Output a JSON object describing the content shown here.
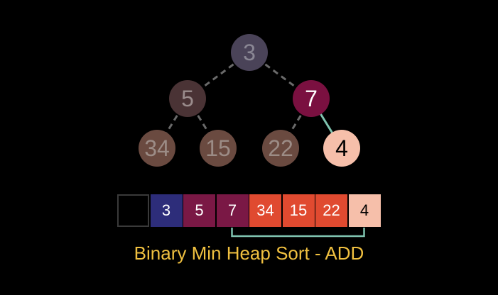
{
  "caption": "Binary Min Heap Sort - ADD",
  "tree": {
    "nodes": [
      {
        "id": "n1",
        "label": "3",
        "fill": "#4a4358",
        "text": "#8a8794"
      },
      {
        "id": "n2",
        "label": "5",
        "fill": "#4a3335",
        "text": "#9a8c8c"
      },
      {
        "id": "n3",
        "label": "7",
        "fill": "#7a1040",
        "text": "#ffffff"
      },
      {
        "id": "n4",
        "label": "34",
        "fill": "#6a4a40",
        "text": "#9c8c86"
      },
      {
        "id": "n5",
        "label": "15",
        "fill": "#6a4a40",
        "text": "#9c8c86"
      },
      {
        "id": "n6",
        "label": "22",
        "fill": "#6a4a40",
        "text": "#9c8c86"
      },
      {
        "id": "n7",
        "label": "4",
        "fill": "#f6bfaa",
        "text": "#000000"
      }
    ],
    "edges": [
      {
        "from": "n1",
        "to": "n2",
        "style": "dashed"
      },
      {
        "from": "n1",
        "to": "n3",
        "style": "dashed"
      },
      {
        "from": "n2",
        "to": "n4",
        "style": "dashed"
      },
      {
        "from": "n2",
        "to": "n5",
        "style": "dashed"
      },
      {
        "from": "n3",
        "to": "n6",
        "style": "dashed"
      },
      {
        "from": "n3",
        "to": "n7",
        "style": "solid"
      }
    ],
    "dashed_edge_color": "#6a6a6a",
    "highlight_edge_color": "#7fc4b0"
  },
  "array": {
    "cells": [
      {
        "label": "",
        "fill": "#000000",
        "text": "#ffffff"
      },
      {
        "label": "3",
        "fill": "#2d2d7a",
        "text": "#ffffff"
      },
      {
        "label": "5",
        "fill": "#7a1845",
        "text": "#ffffff"
      },
      {
        "label": "7",
        "fill": "#7a1845",
        "text": "#ffffff"
      },
      {
        "label": "34",
        "fill": "#e04a30",
        "text": "#ffffff"
      },
      {
        "label": "15",
        "fill": "#e04a30",
        "text": "#ffffff"
      },
      {
        "label": "22",
        "fill": "#e04a30",
        "text": "#ffffff"
      },
      {
        "label": "4",
        "fill": "#f6bfaa",
        "text": "#000000"
      }
    ],
    "bracket_color": "#7fc4b0"
  }
}
